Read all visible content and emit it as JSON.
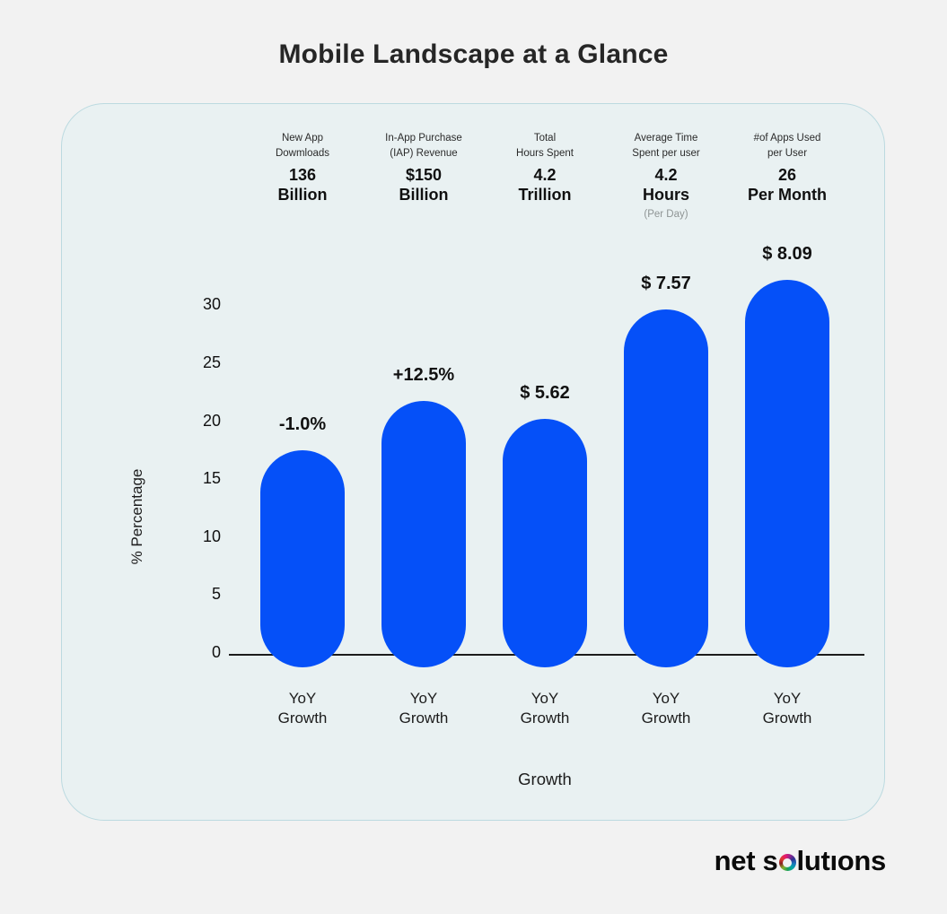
{
  "title": "Mobile Landscape at a Glance",
  "card": {
    "stats": [
      {
        "label_lines": [
          "New App",
          "Dowmloads"
        ],
        "value_lines": [
          "136",
          "Billion"
        ],
        "note": ""
      },
      {
        "label_lines": [
          "In-App Purchase",
          "(IAP) Revenue"
        ],
        "value_lines": [
          "$150",
          "Billion"
        ],
        "note": ""
      },
      {
        "label_lines": [
          "Total",
          "Hours Spent"
        ],
        "value_lines": [
          "4.2",
          "Trillion"
        ],
        "note": ""
      },
      {
        "label_lines": [
          "Average Time",
          "Spent per user"
        ],
        "value_lines": [
          "4.2",
          "Hours"
        ],
        "note": "(Per Day)"
      },
      {
        "label_lines": [
          "#of Apps Used",
          "per User"
        ],
        "value_lines": [
          "26",
          "Per Month"
        ],
        "note": ""
      }
    ]
  },
  "chart_data": {
    "type": "bar",
    "title": "Mobile Landscape at a Glance",
    "xlabel": "Growth",
    "ylabel": "% Percentage",
    "yticks": [
      30,
      25,
      20,
      15,
      10,
      5,
      0
    ],
    "ylim": [
      0,
      30
    ],
    "grid": false,
    "legend": false,
    "categories": [
      "YoY Growth",
      "YoY Growth",
      "YoY Growth",
      "YoY Growth",
      "YoY Growth"
    ],
    "values": [
      17.4,
      21.7,
      20.1,
      29.6,
      32.1
    ],
    "value_labels": [
      "-1.0%",
      "+12.5%",
      "$ 5.62",
      "$ 7.57",
      "$ 8.09"
    ],
    "bar_color": "#0550f8",
    "bar_shape": "rounded-pill-overlapping-baseline"
  },
  "logo": {
    "before": "net s",
    "ring_letter": "o",
    "after": "lutıons"
  },
  "colors": {
    "page_bg": "#f2f2f2",
    "card_bg": "#e9f1f2",
    "card_border": "#bcdae0",
    "bar": "#0550f8",
    "text": "#1c1c1c",
    "muted": "#8e9494",
    "axis": "#1c1c1c"
  }
}
